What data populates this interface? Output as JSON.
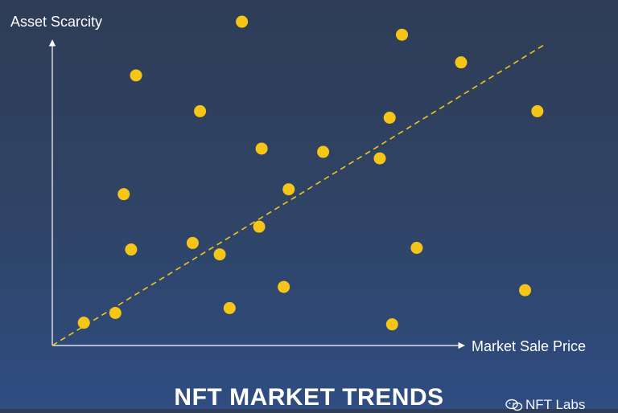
{
  "colors": {
    "background_top": "#2f3d56",
    "background_bottom": "#2f4d82",
    "points": "#f5c518",
    "trendline": "#f5c518",
    "axes": "#ffffff",
    "text": "#ffffff"
  },
  "chart_data": {
    "type": "scatter",
    "title": "NFT MARKET TRENDS",
    "xlabel": "Market Sale Price",
    "ylabel": "Asset Scarcity",
    "xlim": [
      0,
      100
    ],
    "ylim": [
      0,
      100
    ],
    "grid": false,
    "legend": "none",
    "axis_ticks": "none",
    "points": [
      {
        "x": 6.4,
        "y": 7.0
      },
      {
        "x": 12.8,
        "y": 10.0
      },
      {
        "x": 14.5,
        "y": 46.5
      },
      {
        "x": 16.0,
        "y": 29.5
      },
      {
        "x": 17.0,
        "y": 83.0
      },
      {
        "x": 28.5,
        "y": 31.5
      },
      {
        "x": 30.0,
        "y": 72.0
      },
      {
        "x": 34.0,
        "y": 28.0
      },
      {
        "x": 36.0,
        "y": 11.5
      },
      {
        "x": 38.5,
        "y": 99.5
      },
      {
        "x": 42.0,
        "y": 36.5
      },
      {
        "x": 42.5,
        "y": 60.5
      },
      {
        "x": 47.0,
        "y": 18.0
      },
      {
        "x": 48.0,
        "y": 48.0
      },
      {
        "x": 55.0,
        "y": 59.5
      },
      {
        "x": 66.5,
        "y": 57.5
      },
      {
        "x": 68.5,
        "y": 70.0
      },
      {
        "x": 69.0,
        "y": 6.5
      },
      {
        "x": 71.0,
        "y": 95.5
      },
      {
        "x": 74.0,
        "y": 30.0
      },
      {
        "x": 83.0,
        "y": 87.0
      },
      {
        "x": 96.0,
        "y": 17.0
      },
      {
        "x": 98.5,
        "y": 72.0
      }
    ],
    "trendline": {
      "style": "dashed",
      "x": [
        0,
        100
      ],
      "y": [
        0,
        92.5
      ]
    }
  },
  "watermark": {
    "icon": "chat-bubbles-icon",
    "text": "NFT Labs"
  }
}
